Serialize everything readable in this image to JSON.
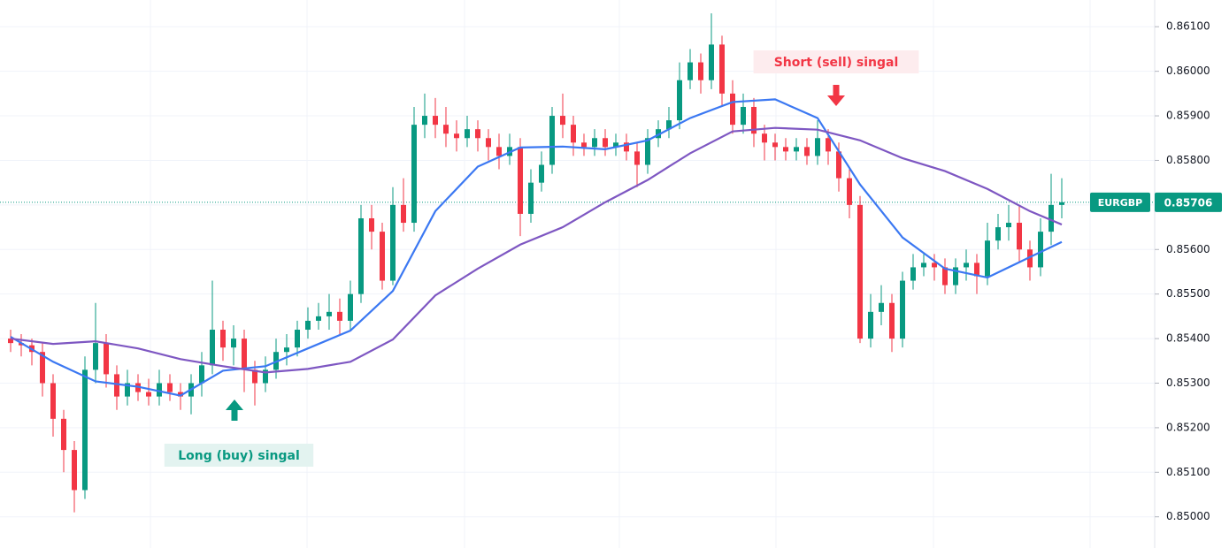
{
  "chart_data": {
    "type": "candlestick",
    "ylim": [
      0.8493,
      0.8616
    ],
    "yticks": [
      {
        "value": 0.85,
        "label": "0.85000"
      },
      {
        "value": 0.851,
        "label": "0.85100"
      },
      {
        "value": 0.852,
        "label": "0.85200"
      },
      {
        "value": 0.853,
        "label": "0.85300"
      },
      {
        "value": 0.854,
        "label": "0.85400"
      },
      {
        "value": 0.855,
        "label": "0.85500"
      },
      {
        "value": 0.856,
        "label": "0.85600"
      },
      {
        "value": 0.857,
        "label": "0.85700"
      },
      {
        "value": 0.858,
        "label": "0.85800"
      },
      {
        "value": 0.859,
        "label": "0.85900"
      },
      {
        "value": 0.86,
        "label": "0.86000"
      },
      {
        "value": 0.861,
        "label": "0.86100"
      }
    ],
    "grid": true,
    "up_color": "#089981",
    "down_color": "#f23645",
    "open": [
      0.854,
      0.8539,
      0.85385,
      0.8537,
      0.853,
      0.8522,
      0.8515,
      0.8506,
      0.8533,
      0.8539,
      0.8532,
      0.8527,
      0.853,
      0.8528,
      0.8527,
      0.853,
      0.8528,
      0.8527,
      0.853,
      0.8534,
      0.8542,
      0.8538,
      0.854,
      0.8533,
      0.853,
      0.8533,
      0.8537,
      0.8538,
      0.8542,
      0.8544,
      0.8545,
      0.8546,
      0.8544,
      0.855,
      0.8567,
      0.8564,
      0.8553,
      0.857,
      0.8566,
      0.8588,
      0.859,
      0.8588,
      0.8586,
      0.8585,
      0.8587,
      0.8585,
      0.8583,
      0.8581,
      0.8583,
      0.8568,
      0.8575,
      0.8579,
      0.859,
      0.8588,
      0.8584,
      0.8583,
      0.8585,
      0.8583,
      0.8584,
      0.8582,
      0.8579,
      0.8585,
      0.8587,
      0.8589,
      0.8598,
      0.8602,
      0.8598,
      0.8606,
      0.8595,
      0.8588,
      0.8592,
      0.8586,
      0.8584,
      0.8583,
      0.8582,
      0.8583,
      0.8581,
      0.8585,
      0.8582,
      0.8576,
      0.857,
      0.854,
      0.8546,
      0.8548,
      0.854,
      0.8553,
      0.8556,
      0.8557,
      0.8556,
      0.8552,
      0.8556,
      0.8557,
      0.8554,
      0.8562,
      0.8565,
      0.8566,
      0.856,
      0.8556,
      0.8564,
      0.857
    ],
    "high": [
      0.8542,
      0.8541,
      0.854,
      0.8539,
      0.8532,
      0.8524,
      0.8517,
      0.8536,
      0.8548,
      0.8541,
      0.8534,
      0.8533,
      0.8532,
      0.8531,
      0.8533,
      0.8532,
      0.853,
      0.8532,
      0.8537,
      0.8553,
      0.8544,
      0.8543,
      0.8542,
      0.8535,
      0.8536,
      0.854,
      0.8541,
      0.8544,
      0.8547,
      0.8548,
      0.855,
      0.8549,
      0.8553,
      0.857,
      0.857,
      0.8566,
      0.8574,
      0.8576,
      0.8592,
      0.8595,
      0.8594,
      0.8592,
      0.8589,
      0.859,
      0.8589,
      0.8587,
      0.8586,
      0.8586,
      0.8585,
      0.8578,
      0.8582,
      0.8592,
      0.8595,
      0.859,
      0.8586,
      0.8587,
      0.8587,
      0.8586,
      0.8586,
      0.8584,
      0.8587,
      0.8589,
      0.8592,
      0.8602,
      0.8605,
      0.8604,
      0.8613,
      0.8608,
      0.8598,
      0.8595,
      0.8594,
      0.8588,
      0.8586,
      0.8585,
      0.8585,
      0.8585,
      0.8589,
      0.8587,
      0.8584,
      0.8578,
      0.8572,
      0.855,
      0.8552,
      0.855,
      0.8555,
      0.8559,
      0.8559,
      0.8559,
      0.8558,
      0.8558,
      0.856,
      0.8559,
      0.8566,
      0.8568,
      0.857,
      0.857,
      0.8562,
      0.8567,
      0.8577,
      0.8576
    ],
    "low": [
      0.8537,
      0.8536,
      0.8534,
      0.8527,
      0.8518,
      0.851,
      0.8501,
      0.8504,
      0.853,
      0.8529,
      0.8524,
      0.8525,
      0.8526,
      0.8525,
      0.8525,
      0.8526,
      0.8524,
      0.8523,
      0.8527,
      0.8532,
      0.8535,
      0.8534,
      0.8528,
      0.8525,
      0.8528,
      0.8531,
      0.8534,
      0.8536,
      0.854,
      0.8542,
      0.8542,
      0.8541,
      0.8542,
      0.8548,
      0.856,
      0.8551,
      0.8552,
      0.8564,
      0.8564,
      0.8585,
      0.8585,
      0.8583,
      0.8582,
      0.8583,
      0.8582,
      0.858,
      0.8578,
      0.8579,
      0.8563,
      0.8566,
      0.8573,
      0.8577,
      0.8585,
      0.8581,
      0.8581,
      0.8581,
      0.8581,
      0.8581,
      0.858,
      0.8574,
      0.8577,
      0.8583,
      0.8585,
      0.8587,
      0.8596,
      0.8595,
      0.8596,
      0.8592,
      0.8586,
      0.8586,
      0.8583,
      0.858,
      0.858,
      0.858,
      0.858,
      0.8579,
      0.8579,
      0.8579,
      0.8573,
      0.8567,
      0.8539,
      0.8538,
      0.8543,
      0.8537,
      0.8538,
      0.8551,
      0.8554,
      0.8553,
      0.855,
      0.855,
      0.8553,
      0.855,
      0.8552,
      0.856,
      0.8562,
      0.8557,
      0.8553,
      0.8554,
      0.8561,
      0.8567
    ],
    "close": [
      0.8539,
      0.85385,
      0.8537,
      0.853,
      0.8522,
      0.8515,
      0.8506,
      0.8533,
      0.8539,
      0.8532,
      0.8527,
      0.853,
      0.8528,
      0.8527,
      0.853,
      0.8528,
      0.8527,
      0.853,
      0.8534,
      0.8542,
      0.8538,
      0.854,
      0.8533,
      0.853,
      0.8533,
      0.8537,
      0.8538,
      0.8542,
      0.8544,
      0.8545,
      0.8546,
      0.8544,
      0.855,
      0.8567,
      0.8564,
      0.8553,
      0.857,
      0.8566,
      0.8588,
      0.859,
      0.8588,
      0.8586,
      0.8585,
      0.8587,
      0.8585,
      0.8583,
      0.8581,
      0.8583,
      0.8568,
      0.8575,
      0.8579,
      0.859,
      0.8588,
      0.8584,
      0.8583,
      0.8585,
      0.8583,
      0.8584,
      0.8582,
      0.8579,
      0.8585,
      0.8587,
      0.8589,
      0.8598,
      0.8602,
      0.8598,
      0.8606,
      0.8595,
      0.8588,
      0.8592,
      0.8586,
      0.8584,
      0.8583,
      0.8582,
      0.8583,
      0.8581,
      0.8585,
      0.8582,
      0.8576,
      0.857,
      0.854,
      0.8546,
      0.8548,
      0.854,
      0.8553,
      0.8556,
      0.8557,
      0.8556,
      0.8552,
      0.8556,
      0.8557,
      0.8554,
      0.8562,
      0.8565,
      0.8566,
      0.856,
      0.8556,
      0.8564,
      0.857,
      0.85706
    ],
    "lines": [
      {
        "color": "#3b78f2",
        "x": [
          0,
          4,
          8,
          12,
          16,
          20,
          24,
          28,
          32,
          36,
          40,
          44,
          48,
          52,
          56,
          60,
          64,
          68,
          72,
          76,
          80,
          84,
          88,
          92,
          96,
          99
        ],
        "values": [
          0.85404,
          0.85348,
          0.85304,
          0.85292,
          0.85272,
          0.85328,
          0.85338,
          0.85378,
          0.85418,
          0.85507,
          0.85686,
          0.85786,
          0.85829,
          0.85831,
          0.85825,
          0.85845,
          0.85895,
          0.85931,
          0.85937,
          0.85895,
          0.85746,
          0.85627,
          0.85557,
          0.85537,
          0.85583,
          0.85617
        ]
      },
      {
        "color": "#7e57c2",
        "x": [
          0,
          4,
          8,
          12,
          16,
          20,
          24,
          28,
          32,
          36,
          40,
          44,
          48,
          52,
          56,
          60,
          64,
          68,
          72,
          76,
          80,
          84,
          88,
          92,
          96,
          99
        ],
        "values": [
          0.854,
          0.85388,
          0.85394,
          0.85378,
          0.85354,
          0.85338,
          0.85324,
          0.85332,
          0.85348,
          0.85398,
          0.85497,
          0.85557,
          0.85611,
          0.8565,
          0.85706,
          0.85756,
          0.85816,
          0.85865,
          0.85873,
          0.85869,
          0.85845,
          0.85805,
          0.85776,
          0.85736,
          0.85686,
          0.85656
        ]
      }
    ],
    "price_label": {
      "symbol": "EURGBP",
      "value": 0.85706,
      "label": "0.85706",
      "color": "#089981"
    },
    "annotations": [
      {
        "text": "Short (sell) singal",
        "color": "#f23645",
        "direction": "down"
      },
      {
        "text": "Long (buy) singal",
        "color": "#089981",
        "direction": "up"
      }
    ]
  }
}
